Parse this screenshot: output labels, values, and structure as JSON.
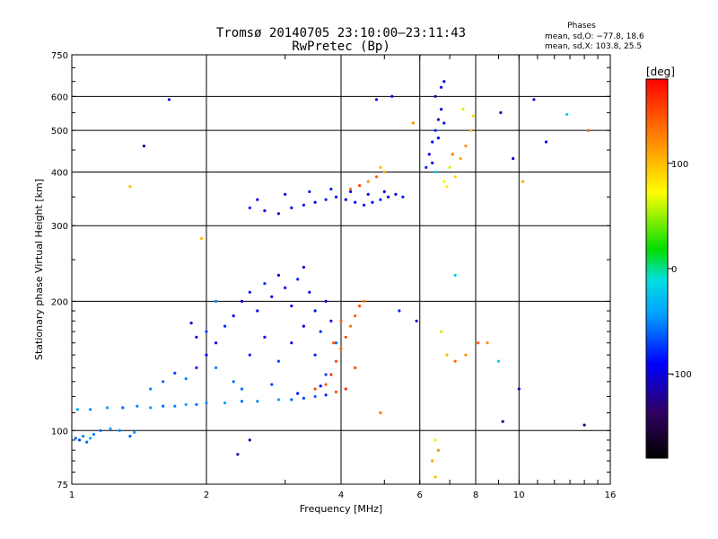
{
  "chart_data": {
    "type": "scatter",
    "title": "Tromsø 20140705 23:10:00–23:11:43",
    "subtitle": "RwPretec (Bp)",
    "xlabel": "Frequency [MHz]",
    "ylabel": "Stationary phase Virtual Height [km]",
    "x_scale": "log",
    "y_scale": "log",
    "xlim": [
      1,
      16
    ],
    "ylim": [
      75,
      750
    ],
    "x_ticks": [
      1,
      2,
      4,
      6,
      8,
      10,
      16
    ],
    "y_ticks": [
      75,
      100,
      200,
      300,
      400,
      500,
      600,
      750
    ],
    "grid": true,
    "phase_stats": {
      "heading": "Phases",
      "line_o": "mean, sd,O: −77.8, 18.6",
      "line_x": "mean, sd,X: 103.8, 25.5"
    },
    "colorbar": {
      "label": "[deg]",
      "ticks": [
        100,
        0,
        -100
      ],
      "range": [
        -180,
        180
      ]
    },
    "series": [
      {
        "points": [
          [
            1.02,
            96,
            -60
          ],
          [
            1.04,
            95,
            -70
          ],
          [
            1.06,
            97,
            -50
          ],
          [
            1.08,
            94,
            -60
          ],
          [
            1.1,
            96,
            -40
          ],
          [
            1.12,
            98,
            -50
          ],
          [
            1.16,
            100,
            -60
          ],
          [
            1.22,
            101,
            -40
          ],
          [
            1.28,
            100,
            -50
          ],
          [
            1.35,
            97,
            -60
          ],
          [
            1.38,
            99,
            -40
          ],
          [
            1.03,
            112,
            -40
          ],
          [
            1.1,
            112,
            -50
          ],
          [
            1.2,
            113,
            -40
          ],
          [
            1.3,
            113,
            -60
          ],
          [
            1.4,
            114,
            -50
          ],
          [
            1.5,
            113,
            -40
          ],
          [
            1.6,
            114,
            -60
          ],
          [
            1.7,
            114,
            -50
          ],
          [
            1.8,
            115,
            -40
          ],
          [
            1.9,
            115,
            -60
          ],
          [
            2.0,
            116,
            -50
          ],
          [
            2.2,
            116,
            -40
          ],
          [
            2.4,
            117,
            -60
          ],
          [
            2.6,
            117,
            -50
          ],
          [
            2.9,
            118,
            -40
          ],
          [
            3.1,
            118,
            -60
          ],
          [
            3.3,
            119,
            -70
          ],
          [
            3.5,
            120,
            -60
          ],
          [
            3.7,
            121,
            -80
          ],
          [
            1.5,
            125,
            -50
          ],
          [
            1.6,
            130,
            -60
          ],
          [
            1.7,
            136,
            -70
          ],
          [
            1.8,
            132,
            -50
          ],
          [
            1.9,
            140,
            -80
          ],
          [
            2.0,
            150,
            -90
          ],
          [
            2.1,
            160,
            -100
          ],
          [
            2.2,
            175,
            -80
          ],
          [
            2.3,
            185,
            -90
          ],
          [
            2.4,
            200,
            -100
          ],
          [
            2.5,
            210,
            -85
          ],
          [
            2.6,
            190,
            -95
          ],
          [
            2.7,
            220,
            -75
          ],
          [
            2.8,
            205,
            -90
          ],
          [
            2.9,
            230,
            -100
          ],
          [
            3.0,
            215,
            -85
          ],
          [
            3.1,
            195,
            -95
          ],
          [
            3.2,
            225,
            -80
          ],
          [
            3.3,
            240,
            -100
          ],
          [
            3.4,
            210,
            -90
          ],
          [
            3.5,
            190,
            -85
          ],
          [
            3.6,
            170,
            -75
          ],
          [
            3.7,
            200,
            -95
          ],
          [
            3.8,
            180,
            -100
          ],
          [
            2.0,
            170,
            -70
          ],
          [
            2.1,
            140,
            -50
          ],
          [
            2.3,
            130,
            -60
          ],
          [
            2.5,
            150,
            -80
          ],
          [
            2.7,
            165,
            -90
          ],
          [
            2.9,
            145,
            -70
          ],
          [
            3.1,
            160,
            -100
          ],
          [
            3.3,
            175,
            -90
          ],
          [
            3.5,
            150,
            -80
          ],
          [
            3.7,
            135,
            -70
          ],
          [
            3.9,
            160,
            -60
          ],
          [
            2.4,
            125,
            -60
          ],
          [
            2.8,
            128,
            -70
          ],
          [
            3.2,
            122,
            -90
          ],
          [
            3.6,
            127,
            -100
          ],
          [
            1.9,
            165,
            -100
          ],
          [
            1.85,
            178,
            -105
          ],
          [
            2.5,
            330,
            -80
          ],
          [
            2.7,
            325,
            -90
          ],
          [
            2.9,
            320,
            -100
          ],
          [
            3.1,
            330,
            -90
          ],
          [
            3.3,
            335,
            -85
          ],
          [
            3.5,
            340,
            -95
          ],
          [
            3.7,
            345,
            -80
          ],
          [
            3.9,
            350,
            -90
          ],
          [
            4.1,
            345,
            -100
          ],
          [
            4.3,
            340,
            -90
          ],
          [
            4.5,
            335,
            -85
          ],
          [
            4.7,
            340,
            -95
          ],
          [
            4.9,
            345,
            -80
          ],
          [
            5.1,
            350,
            -90
          ],
          [
            5.3,
            355,
            -100
          ],
          [
            5.5,
            350,
            -85
          ],
          [
            2.6,
            345,
            -95
          ],
          [
            3.0,
            355,
            -90
          ],
          [
            3.4,
            360,
            -80
          ],
          [
            3.8,
            365,
            -85
          ],
          [
            4.2,
            360,
            -90
          ],
          [
            4.6,
            355,
            -95
          ],
          [
            5.0,
            360,
            -100
          ],
          [
            4.6,
            380,
            120
          ],
          [
            4.8,
            390,
            140
          ],
          [
            4.4,
            372,
            150
          ],
          [
            5.0,
            400,
            110
          ],
          [
            4.2,
            365,
            130
          ],
          [
            4.9,
            410,
            100
          ],
          [
            3.5,
            125,
            150
          ],
          [
            3.7,
            128,
            140
          ],
          [
            3.8,
            135,
            160
          ],
          [
            3.9,
            145,
            150
          ],
          [
            4.0,
            155,
            140
          ],
          [
            4.1,
            165,
            150
          ],
          [
            4.2,
            175,
            130
          ],
          [
            4.3,
            185,
            140
          ],
          [
            4.4,
            195,
            150
          ],
          [
            4.5,
            200,
            130
          ],
          [
            4.1,
            125,
            160
          ],
          [
            3.9,
            123,
            150
          ],
          [
            4.3,
            140,
            150
          ],
          [
            4.0,
            180,
            140
          ],
          [
            3.85,
            160,
            145
          ],
          [
            6.3,
            440,
            -100
          ],
          [
            6.4,
            470,
            -90
          ],
          [
            6.5,
            500,
            -80
          ],
          [
            6.6,
            530,
            -100
          ],
          [
            6.7,
            560,
            -90
          ],
          [
            6.5,
            600,
            -110
          ],
          [
            6.7,
            630,
            -95
          ],
          [
            6.8,
            650,
            -100
          ],
          [
            6.4,
            420,
            -90
          ],
          [
            6.2,
            410,
            -80
          ],
          [
            6.6,
            480,
            -95
          ],
          [
            6.8,
            520,
            -85
          ],
          [
            7.0,
            410,
            60
          ],
          [
            7.2,
            390,
            90
          ],
          [
            6.9,
            370,
            80
          ],
          [
            7.4,
            430,
            110
          ],
          [
            7.6,
            460,
            120
          ],
          [
            7.8,
            500,
            100
          ],
          [
            7.9,
            540,
            90
          ],
          [
            6.8,
            380,
            70
          ],
          [
            6.5,
            400,
            -20
          ],
          [
            7.1,
            440,
            130
          ],
          [
            7.5,
            560,
            60
          ],
          [
            6.5,
            95,
            80
          ],
          [
            6.6,
            90,
            120
          ],
          [
            6.4,
            85,
            110
          ],
          [
            6.5,
            78,
            100
          ],
          [
            6.7,
            170,
            60
          ],
          [
            6.9,
            150,
            100
          ],
          [
            7.2,
            145,
            140
          ],
          [
            7.6,
            150,
            120
          ],
          [
            8.5,
            160,
            120
          ],
          [
            9.0,
            145,
            -20
          ],
          [
            1.45,
            460,
            -110
          ],
          [
            1.65,
            590,
            -90
          ],
          [
            1.35,
            370,
            100
          ],
          [
            2.5,
            95,
            -110
          ],
          [
            2.35,
            88,
            -120
          ],
          [
            4.8,
            590,
            -90
          ],
          [
            5.2,
            600,
            -100
          ],
          [
            5.8,
            520,
            120
          ],
          [
            9.1,
            550,
            -120
          ],
          [
            9.7,
            430,
            -110
          ],
          [
            10.2,
            380,
            110
          ],
          [
            10.8,
            590,
            -100
          ],
          [
            11.5,
            470,
            -90
          ],
          [
            12.8,
            545,
            -20
          ],
          [
            14.3,
            500,
            140
          ],
          [
            14.0,
            103,
            -120
          ],
          [
            10.0,
            125,
            -110
          ],
          [
            9.2,
            105,
            -120
          ],
          [
            7.2,
            230,
            -20
          ],
          [
            8.1,
            160,
            140
          ],
          [
            5.4,
            190,
            -80
          ],
          [
            5.9,
            180,
            -100
          ],
          [
            4.9,
            110,
            130
          ],
          [
            2.1,
            200,
            -50
          ],
          [
            1.95,
            280,
            100
          ]
        ]
      }
    ]
  }
}
